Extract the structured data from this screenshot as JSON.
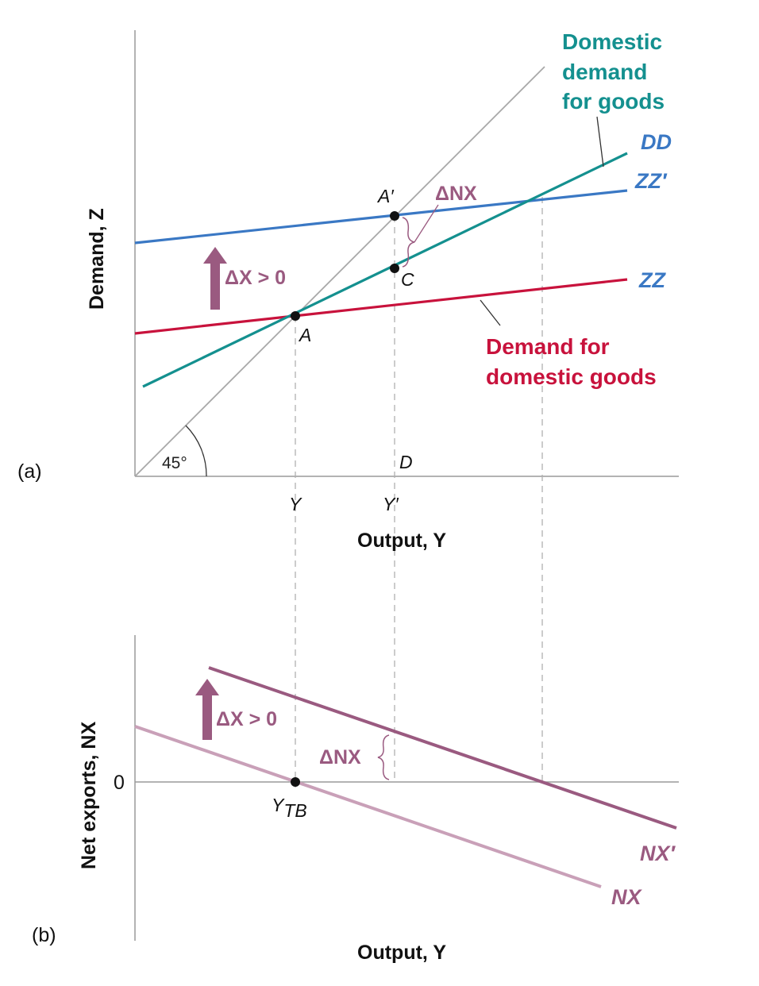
{
  "chart_data": [
    {
      "panel": "(a)",
      "type": "line",
      "ylabel": "Demand, Z",
      "xlabel": "Output, Y",
      "x_ticks": [
        "Y",
        "Y′"
      ],
      "angle_label": "45°",
      "series": [
        {
          "name": "ZZ",
          "color": "#c8123c",
          "description_label": "Demand for domestic goods",
          "values": [
            [
              0,
              1.8
            ],
            [
              6.2,
              4.0
            ]
          ]
        },
        {
          "name": "ZZ′",
          "color": "#3a78c4",
          "values": [
            [
              0,
              2.95
            ],
            [
              6.2,
              3.6
            ]
          ]
        },
        {
          "name": "DD",
          "color": "#14908f",
          "description_label": "Domestic demand for goods",
          "values": [
            [
              0.1,
              1.1
            ],
            [
              5.9,
              4.0
            ]
          ]
        },
        {
          "name": "45° line",
          "color": "#a0a0a0",
          "values": [
            [
              0,
              0
            ],
            [
              5.2,
              5.2
            ]
          ]
        }
      ],
      "points": [
        {
          "name": "A",
          "x": 2.0,
          "y": 2.0
        },
        {
          "name": "A′",
          "x": 3.25,
          "y": 3.25
        },
        {
          "name": "C",
          "x": 3.25,
          "y": 2.58
        },
        {
          "name": "D",
          "x": 3.25,
          "y": 0
        }
      ],
      "annotations": [
        "ΔX > 0",
        "ΔNX"
      ]
    },
    {
      "panel": "(b)",
      "type": "line",
      "ylabel": "Net exports, NX",
      "xlabel": "Output, Y",
      "y_ticks": [
        "0"
      ],
      "series": [
        {
          "name": "NX",
          "color": "#c9a0b8",
          "values": [
            [
              0,
              0.7
            ],
            [
              5.85,
              -1.3
            ]
          ]
        },
        {
          "name": "NX′",
          "color": "#9a5a80",
          "values": [
            [
              0.95,
              1.45
            ],
            [
              6.8,
              -0.6
            ]
          ]
        }
      ],
      "points": [
        {
          "name": "Y_TB",
          "x": 2.0,
          "y": 0
        }
      ],
      "annotations": [
        "ΔX > 0",
        "ΔNX"
      ]
    }
  ],
  "text": {
    "panel_a_tag": "(a)",
    "panel_b_tag": "(b)",
    "a_ylabel": "Demand, Z",
    "a_xlabel": "Output, Y",
    "b_ylabel": "Net exports, NX",
    "b_xlabel": "Output, Y",
    "dd_desc_1": "Domestic",
    "dd_desc_2": "demand",
    "dd_desc_3": "for goods",
    "dd_label": "DD",
    "zzp_label": "ZZ′",
    "zz_label": "ZZ",
    "zz_desc_1": "Demand for",
    "zz_desc_2": "domestic goods",
    "delta_x_a": "ΔX > 0",
    "delta_nx_a": "ΔNX",
    "point_a": "A",
    "point_ap": "A′",
    "point_c": "C",
    "point_d": "D",
    "tick_y": "Y",
    "tick_yp": "Y′",
    "angle": "45°",
    "zero": "0",
    "ytb_main": "Y",
    "ytb_sub": "TB",
    "delta_x_b": "ΔX > 0",
    "delta_nx_b": "ΔNX",
    "nxp_label": "NX′",
    "nx_label": "NX"
  }
}
